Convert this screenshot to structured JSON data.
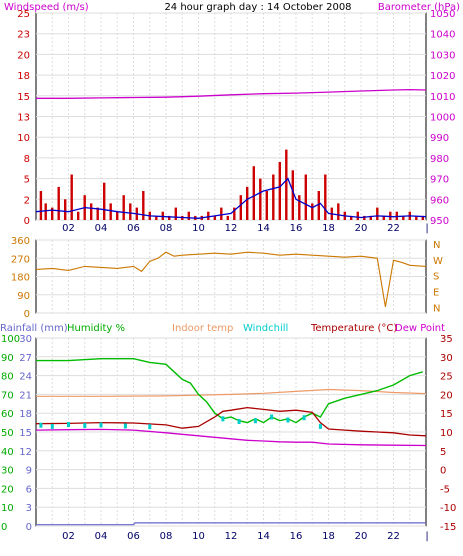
{
  "header": {
    "left_label": "Windspeed (m/s)",
    "title": "24 hour graph day : 14 October 2008",
    "right_label": "Barometer (hPa)"
  },
  "colors": {
    "windspeed": "#cc0000",
    "windavg": "#0000cc",
    "barometer": "#cc00cc",
    "winddir": "#cc7700",
    "rainfall": "#6666cc",
    "humidity": "#00bb00",
    "indoor": "#ee9966",
    "windchill": "#00cccc",
    "temperature": "#aa0000",
    "dewpoint": "#cc00cc",
    "grid": "#dddddd",
    "axis": "#cc00cc"
  },
  "chart_data": [
    {
      "type": "line",
      "title": "24 hour graph day : 14 October 2008",
      "x_ticks": [
        "02",
        "04",
        "06",
        "08",
        "10",
        "12",
        "14",
        "16",
        "18",
        "20",
        "22"
      ],
      "xlim": [
        0,
        24
      ],
      "left_axis": {
        "label": "Windspeed (m/s)",
        "ticks": [
          "0",
          "2",
          "5",
          "8",
          "10",
          "13",
          "15",
          "18",
          "20",
          "23",
          "25"
        ],
        "ylim": [
          0,
          25
        ]
      },
      "right_axis": {
        "label": "Barometer (hPa)",
        "ticks": [
          "950",
          "960",
          "970",
          "980",
          "990",
          "1000",
          "1010",
          "1020",
          "1030",
          "1040",
          "1050"
        ],
        "ylim": [
          950,
          1050
        ]
      },
      "series": [
        {
          "name": "Windspeed (m/s)",
          "axis": "left",
          "style": "bars",
          "x": [
            0.3,
            0.6,
            1.0,
            1.4,
            1.8,
            2.2,
            2.6,
            3.0,
            3.4,
            3.8,
            4.2,
            4.6,
            5.0,
            5.4,
            5.8,
            6.2,
            6.6,
            7.0,
            7.4,
            7.8,
            8.2,
            8.6,
            9.0,
            9.4,
            9.8,
            10.2,
            10.6,
            11.0,
            11.4,
            11.8,
            12.2,
            12.6,
            13.0,
            13.4,
            13.8,
            14.2,
            14.6,
            15.0,
            15.4,
            15.8,
            16.2,
            16.6,
            17.0,
            17.4,
            17.8,
            18.2,
            18.6,
            19.0,
            19.4,
            19.8,
            20.2,
            20.6,
            21.0,
            21.4,
            21.8,
            22.2,
            22.6,
            23.0,
            23.4,
            23.8
          ],
          "values": [
            3.5,
            2.0,
            1.5,
            4.0,
            2.5,
            5.5,
            1.0,
            3.0,
            2.0,
            1.5,
            4.5,
            2.0,
            1.0,
            3.0,
            2.0,
            1.5,
            3.5,
            1.0,
            0.5,
            1.0,
            0.5,
            1.5,
            0.5,
            1.0,
            0.5,
            0.5,
            1.0,
            0.5,
            1.5,
            0.5,
            1.5,
            3.0,
            4.0,
            6.5,
            5.0,
            3.5,
            5.5,
            7.0,
            8.5,
            6.0,
            3.0,
            5.5,
            2.0,
            3.5,
            5.5,
            1.5,
            2.0,
            1.0,
            0.5,
            1.0,
            0.5,
            0.5,
            1.5,
            0.5,
            1.0,
            1.0,
            0.5,
            1.0,
            0.5,
            0.5
          ]
        },
        {
          "name": "Wind average",
          "axis": "left",
          "style": "line",
          "x": [
            0,
            1,
            2,
            3,
            4,
            5,
            6,
            7,
            8,
            9,
            10,
            11,
            12,
            13,
            14,
            15,
            15.5,
            16,
            17,
            17.5,
            18,
            19,
            20,
            21,
            22,
            23,
            24
          ],
          "values": [
            1.0,
            1.2,
            1.0,
            1.5,
            1.3,
            1.0,
            0.8,
            0.5,
            0.4,
            0.3,
            0.2,
            0.5,
            0.8,
            2.5,
            3.5,
            4.0,
            5.0,
            2.5,
            1.5,
            2.0,
            0.8,
            0.5,
            0.3,
            0.5,
            0.4,
            0.5,
            0.4
          ]
        },
        {
          "name": "Barometer (hPa)",
          "axis": "right",
          "style": "line",
          "x": [
            0,
            2,
            4,
            6,
            8,
            10,
            12,
            14,
            16,
            18,
            20,
            22,
            23,
            24
          ],
          "values": [
            1008.8,
            1008.8,
            1009.0,
            1009.2,
            1009.3,
            1009.8,
            1010.5,
            1011.0,
            1011.3,
            1011.8,
            1012.3,
            1012.8,
            1013.0,
            1012.8
          ]
        }
      ]
    },
    {
      "type": "line",
      "xlim": [
        0,
        24
      ],
      "left_axis": {
        "ticks": [
          "0",
          "90",
          "180",
          "270",
          "360"
        ],
        "ylim": [
          0,
          360
        ]
      },
      "right_axis": {
        "ticks": [
          "N",
          "E",
          "S",
          "W",
          "N"
        ]
      },
      "series": [
        {
          "name": "Wind direction",
          "axis": "left",
          "style": "line",
          "x": [
            0,
            1,
            2,
            3,
            4,
            5,
            6,
            6.5,
            7,
            7.5,
            8,
            8.5,
            9,
            10,
            11,
            12,
            13,
            14,
            15,
            16,
            17,
            18,
            19,
            20,
            21,
            21.5,
            22,
            22.5,
            23,
            24
          ],
          "values": [
            215,
            220,
            210,
            230,
            225,
            220,
            230,
            205,
            255,
            270,
            300,
            280,
            285,
            290,
            295,
            290,
            300,
            295,
            285,
            290,
            285,
            280,
            275,
            280,
            270,
            30,
            260,
            250,
            235,
            230
          ]
        }
      ]
    },
    {
      "type": "line",
      "xlim": [
        0,
        24
      ],
      "legend": [
        "Rainfall (mm)",
        "Humidity %",
        "Indoor temp",
        "Windchill",
        "Temperature (°C)",
        "Dew Point"
      ],
      "left_axis_rain": {
        "label": "Rainfall (mm)",
        "ticks": [
          "0",
          "3",
          "6",
          "9",
          "12",
          "15",
          "18",
          "21",
          "24",
          "27",
          "30"
        ],
        "ylim": [
          0,
          30
        ]
      },
      "left_axis_humidity": {
        "label": "Humidity %",
        "ticks": [
          "0",
          "10",
          "20",
          "30",
          "40",
          "50",
          "60",
          "70",
          "80",
          "90",
          "100"
        ],
        "ylim": [
          0,
          100
        ]
      },
      "right_axis": {
        "label": "Temperature (°C)",
        "ticks": [
          "-15",
          "-10",
          "-5",
          "0",
          "5",
          "10",
          "15",
          "20",
          "25",
          "30",
          "35"
        ],
        "ylim": [
          -15,
          35
        ]
      },
      "series": [
        {
          "name": "Rainfall (mm)",
          "axis": "rain",
          "x": [
            0,
            6,
            6.1,
            24
          ],
          "values": [
            0.2,
            0.2,
            0.5,
            0.5
          ]
        },
        {
          "name": "Humidity %",
          "axis": "humidity",
          "x": [
            0,
            2,
            4,
            6,
            7,
            8,
            8.5,
            9,
            9.5,
            10,
            10.5,
            11,
            11.5,
            12,
            12.5,
            13,
            13.5,
            14,
            14.5,
            15,
            15.5,
            16,
            16.5,
            17,
            17.5,
            18,
            19,
            20,
            21,
            22,
            23,
            23.8
          ],
          "values": [
            88,
            88,
            89,
            89,
            87,
            86,
            82,
            78,
            76,
            70,
            66,
            60,
            57,
            58,
            56,
            55,
            57,
            55,
            58,
            56,
            57,
            55,
            58,
            60,
            58,
            65,
            68,
            70,
            72,
            75,
            80,
            82
          ]
        },
        {
          "name": "Indoor temp",
          "axis": "right",
          "x": [
            0,
            4,
            8,
            10,
            12,
            14,
            16,
            18,
            20,
            22,
            24
          ],
          "values": [
            19.5,
            19.5,
            19.6,
            19.8,
            20.0,
            20.3,
            20.8,
            21.3,
            21.0,
            20.5,
            20.2
          ]
        },
        {
          "name": "Windchill",
          "axis": "right",
          "x": [
            0.3,
            1.0,
            2.0,
            3.0,
            4.0,
            5.5,
            7.0,
            11.5,
            12.5,
            13.5,
            14.5,
            15.5,
            16.5,
            17.5
          ],
          "values": [
            11.8,
            11.5,
            12.0,
            11.7,
            11.9,
            11.6,
            11.4,
            13.5,
            12.8,
            13.0,
            14.0,
            13.2,
            13.8,
            11.5
          ]
        },
        {
          "name": "Temperature (°C)",
          "axis": "right",
          "x": [
            0,
            2,
            4,
            6,
            8,
            9,
            10,
            11,
            11.5,
            12,
            13,
            14,
            15,
            16,
            17,
            17.5,
            18,
            19,
            20,
            21,
            22,
            23,
            24
          ],
          "values": [
            12.2,
            12.3,
            12.5,
            12.4,
            11.9,
            11.0,
            11.5,
            14.0,
            15.5,
            15.8,
            16.5,
            16.0,
            15.5,
            15.8,
            15.2,
            12.5,
            10.8,
            10.5,
            10.2,
            10.0,
            9.8,
            9.2,
            9.0
          ]
        },
        {
          "name": "Dew Point",
          "axis": "right",
          "x": [
            0,
            2,
            4,
            6,
            8,
            10,
            11,
            12,
            13,
            14,
            15,
            16,
            17,
            18,
            20,
            22,
            24
          ],
          "values": [
            10.5,
            10.6,
            10.7,
            10.5,
            9.8,
            9.0,
            8.6,
            8.2,
            7.8,
            7.6,
            7.4,
            7.3,
            7.3,
            6.8,
            6.6,
            6.5,
            6.4
          ]
        }
      ]
    }
  ]
}
